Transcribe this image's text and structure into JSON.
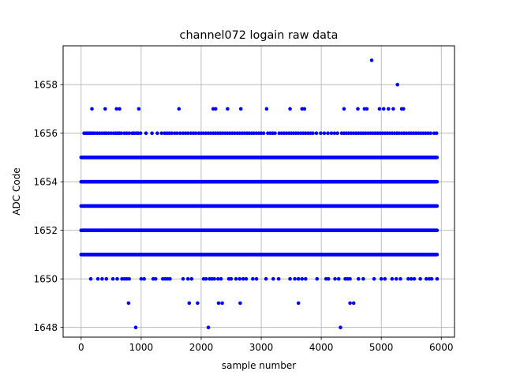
{
  "chart_data": {
    "type": "scatter",
    "title": "channel072 logain raw data",
    "xlabel": "sample number",
    "ylabel": "ADC Code",
    "xlim": [
      -300,
      6220
    ],
    "ylim": [
      1647.6,
      1659.6
    ],
    "xticks": [
      0,
      1000,
      2000,
      3000,
      4000,
      5000,
      6000
    ],
    "yticks": [
      1648,
      1650,
      1652,
      1654,
      1656,
      1658
    ],
    "grid": true,
    "marker_color": "#0000ff",
    "series": [
      {
        "dense_levels": [
          1651,
          1652,
          1653,
          1654,
          1655
        ],
        "dense_x_range": [
          0,
          5930
        ],
        "level_1656_x": [
          50,
          80,
          110,
          140,
          170,
          200,
          230,
          270,
          310,
          350,
          390,
          420,
          460,
          500,
          540,
          580,
          610,
          640,
          670,
          720,
          760,
          800,
          850,
          880,
          920,
          950,
          990,
          1080,
          1180,
          1270,
          1340,
          1390,
          1430,
          1470,
          1510,
          1560,
          1600,
          1650,
          1700,
          1740,
          1780,
          1830,
          1870,
          1910,
          1960,
          2000,
          2040,
          2080,
          2120,
          2160,
          2200,
          2240,
          2280,
          2320,
          2360,
          2400,
          2440,
          2480,
          2520,
          2560,
          2600,
          2640,
          2680,
          2720,
          2760,
          2800,
          2840,
          2880,
          2920,
          2960,
          3000,
          3040,
          3110,
          3150,
          3190,
          3230,
          3300,
          3340,
          3380,
          3420,
          3460,
          3500,
          3540,
          3580,
          3620,
          3660,
          3700,
          3740,
          3780,
          3820,
          3860,
          3920,
          3990,
          4050,
          4110,
          4170,
          4220,
          4270,
          4340,
          4380,
          4420,
          4460,
          4500,
          4540,
          4580,
          4620,
          4660,
          4700,
          4740,
          4780,
          4820,
          4860,
          4900,
          4940,
          4980,
          5020,
          5060,
          5100,
          5140,
          5180,
          5220,
          5260,
          5300,
          5340,
          5380,
          5420,
          5460,
          5500,
          5540,
          5580,
          5620,
          5660,
          5700,
          5740,
          5780,
          5820,
          5880,
          5920
        ],
        "level_1650_x": [
          160,
          280,
          350,
          420,
          530,
          600,
          680,
          720,
          760,
          800,
          1000,
          1050,
          1200,
          1240,
          1360,
          1400,
          1440,
          1480,
          1700,
          1780,
          1840,
          2040,
          2080,
          2140,
          2180,
          2220,
          2280,
          2330,
          2460,
          2500,
          2580,
          2640,
          2700,
          2750,
          2860,
          2920,
          3080,
          3200,
          3290,
          3480,
          3560,
          3620,
          3680,
          3740,
          3930,
          4080,
          4120,
          4230,
          4290,
          4400,
          4440,
          4480,
          4620,
          4700,
          4880,
          5000,
          5060,
          5180,
          5250,
          5320,
          5450,
          5500,
          5550,
          5650,
          5750,
          5800,
          5840,
          5930
        ],
        "level_1657_x": [
          180,
          400,
          590,
          640,
          960,
          1630,
          2200,
          2240,
          2440,
          2660,
          3090,
          3480,
          3680,
          3720,
          4380,
          4610,
          4720,
          4760,
          4970,
          5040,
          5120,
          5200,
          5340,
          5370
        ],
        "level_1649_x": [
          790,
          1800,
          1940,
          2290,
          2350,
          2650,
          3620,
          4480,
          4540
        ],
        "level_1648_x": [
          910,
          2120,
          4320
        ],
        "level_1658_x": [
          5270
        ],
        "level_1659_x": [
          4840
        ]
      }
    ]
  }
}
